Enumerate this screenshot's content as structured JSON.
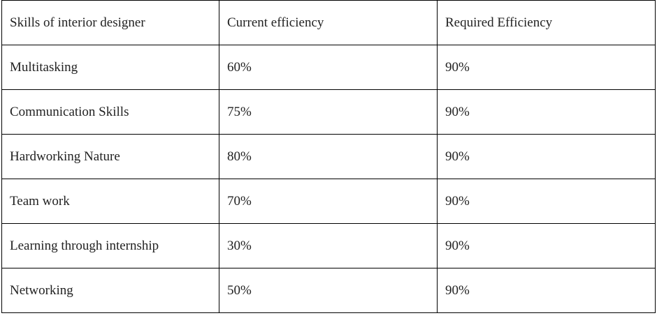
{
  "table": {
    "headers": [
      "Skills of interior designer",
      "Current efficiency",
      "Required Efficiency"
    ],
    "rows": [
      [
        "Multitasking",
        "60%",
        "90%"
      ],
      [
        "Communication Skills",
        "75%",
        "90%"
      ],
      [
        "Hardworking Nature",
        "80%",
        "90%"
      ],
      [
        "Team work",
        "70%",
        "90%"
      ],
      [
        "Learning through internship",
        "30%",
        "90%"
      ],
      [
        "Networking",
        "50%",
        "90%"
      ]
    ]
  }
}
